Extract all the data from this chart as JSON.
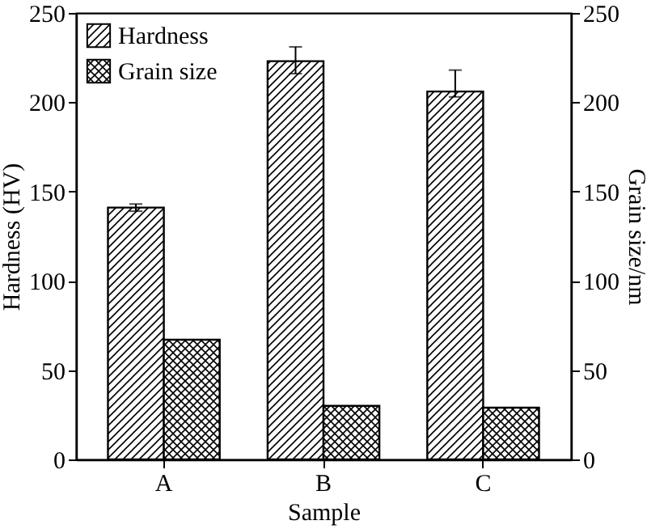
{
  "chart_data": {
    "type": "bar",
    "xlabel": "Sample",
    "ylabel": "Hardness (HV)",
    "y2label": "Grain size/nm",
    "categories": [
      "A",
      "B",
      "C"
    ],
    "series": [
      {
        "name": "Hardness",
        "color": "#000000",
        "values": [
          141,
          223,
          206
        ],
        "errors": [
          [
            139,
            143
          ],
          [
            216,
            231
          ],
          [
            203,
            218
          ]
        ]
      },
      {
        "name": "Grain size",
        "color": "#000000",
        "axis": "y2",
        "values": [
          67,
          30,
          29
        ]
      }
    ],
    "ylim": [
      0,
      250
    ],
    "yticks": [
      0,
      50,
      100,
      150,
      200,
      250
    ],
    "y2lim": [
      0,
      250
    ],
    "y2ticks": [
      0,
      50,
      100,
      150,
      200,
      250
    ],
    "grid": false,
    "legend": "top left"
  }
}
